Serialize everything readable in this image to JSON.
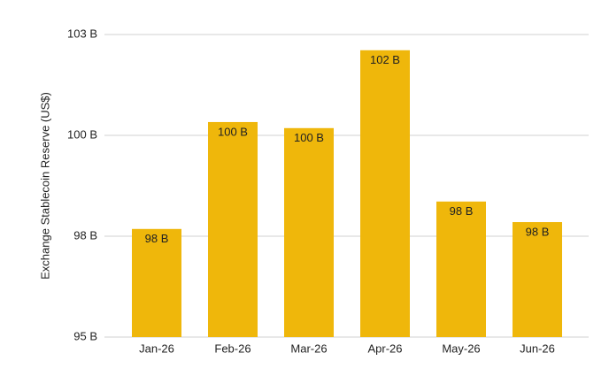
{
  "chart_data": {
    "type": "bar",
    "y_label": "Exchange Stablecoin Reserve (US$)",
    "categories": [
      "Jan-26",
      "Feb-26",
      "Mar-26",
      "Apr-26",
      "May-26",
      "Jun-26"
    ],
    "values": [
      97.68,
      100.33,
      100.18,
      102.11,
      98.36,
      97.85
    ],
    "value_labels": [
      "98 B",
      "100 B",
      "100 B",
      "102 B",
      "98 B",
      "98 B"
    ],
    "color": "#efb70b",
    "ylim": [
      95,
      102.5
    ],
    "yticks": [
      {
        "value": 95,
        "label": "95 B"
      },
      {
        "value": 97.5,
        "label": "98 B"
      },
      {
        "value": 100,
        "label": "100 B"
      },
      {
        "value": 102.5,
        "label": "103 B"
      }
    ],
    "grid": true
  }
}
